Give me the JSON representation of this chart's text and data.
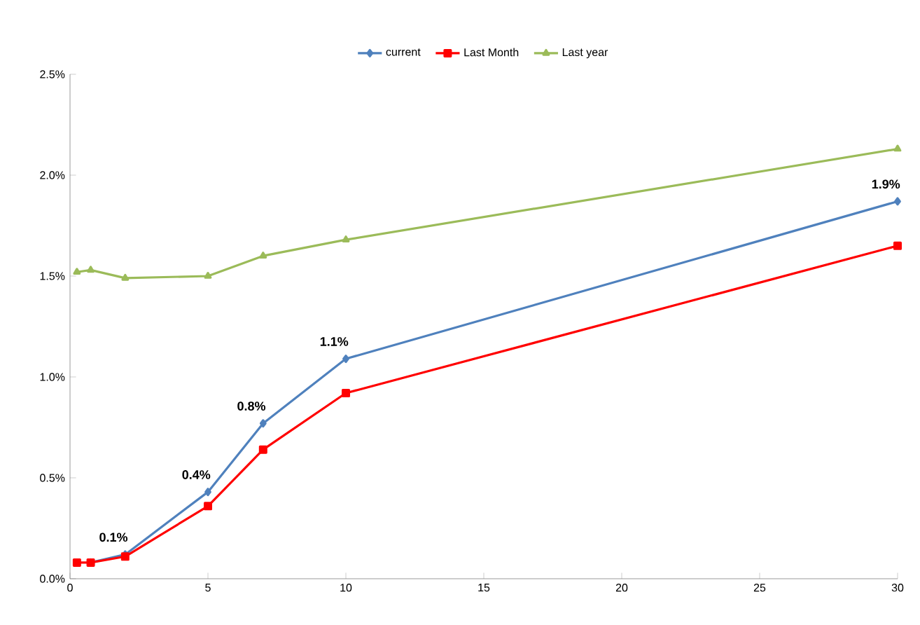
{
  "chart_data": {
    "type": "line",
    "legend": "top",
    "xlim": [
      0,
      30
    ],
    "xticks": [
      0,
      5,
      10,
      15,
      20,
      25,
      30
    ],
    "ylim": [
      0,
      2.5
    ],
    "yticks": [
      {
        "value": 0,
        "label": "0.0%"
      },
      {
        "value": 0.5,
        "label": "0.5%"
      },
      {
        "value": 1,
        "label": "1.0%"
      },
      {
        "value": 1.5,
        "label": "1.5%"
      },
      {
        "value": 2,
        "label": "2.0%"
      },
      {
        "value": 2.5,
        "label": "2.5%"
      }
    ],
    "x": [
      0.25,
      0.75,
      2,
      5,
      7,
      10,
      30
    ],
    "series": [
      {
        "name": "current",
        "color": "#4f81bd",
        "marker": "diamond",
        "values": [
          null,
          0.08,
          0.12,
          0.43,
          0.77,
          1.09,
          1.87
        ],
        "value_labels": [
          null,
          null,
          "0.1%",
          "0.4%",
          "0.8%",
          "1.1%",
          "1.9%"
        ]
      },
      {
        "name": "Last Month",
        "color": "#ff0000",
        "marker": "square",
        "values": [
          0.08,
          0.08,
          0.11,
          0.36,
          0.64,
          0.92,
          1.65
        ]
      },
      {
        "name": "Last year",
        "color": "#9bbb59",
        "marker": "triangle",
        "values": [
          1.52,
          1.53,
          1.49,
          1.5,
          1.6,
          1.68,
          2.13
        ]
      }
    ]
  }
}
